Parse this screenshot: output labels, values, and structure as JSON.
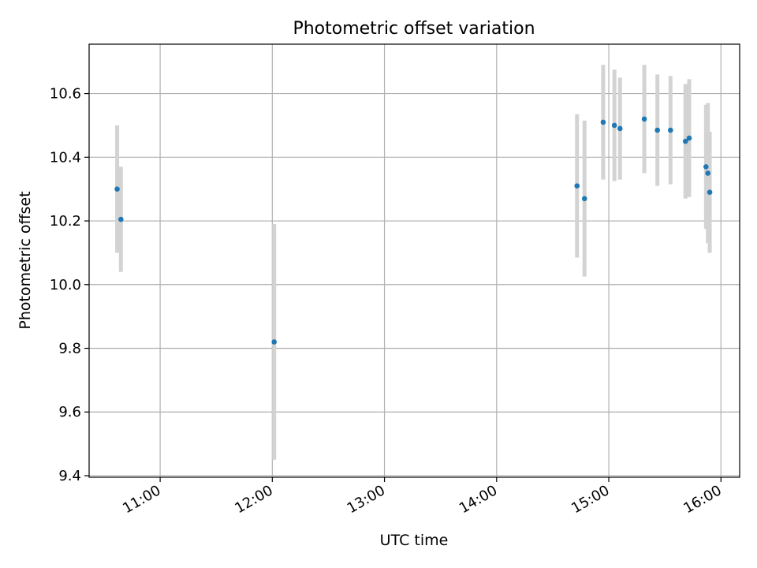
{
  "chart_data": {
    "type": "scatter",
    "title": "Photometric offset variation",
    "xlabel": "UTC time",
    "ylabel": "Photometric offset",
    "x_unit": "UTC time",
    "xlim": [
      "10:22",
      "16:10"
    ],
    "ylim": [
      9.395,
      10.755
    ],
    "x_ticks": [
      "11:00",
      "12:00",
      "13:00",
      "14:00",
      "15:00",
      "16:00"
    ],
    "y_ticks": [
      "9.4",
      "9.6",
      "9.8",
      "10.0",
      "10.2",
      "10.4",
      "10.6"
    ],
    "grid": true,
    "legend": null,
    "point_color": "#1f77b4",
    "errorbar_color": "#d3d3d3",
    "points": [
      {
        "x": "10:37",
        "y": 10.3,
        "yerr": 0.2
      },
      {
        "x": "10:39",
        "y": 10.205,
        "yerr": 0.165
      },
      {
        "x": "12:01",
        "y": 9.82,
        "yerr": 0.37
      },
      {
        "x": "14:43",
        "y": 10.31,
        "yerr": 0.225
      },
      {
        "x": "14:47",
        "y": 10.27,
        "yerr": 0.245
      },
      {
        "x": "14:57",
        "y": 10.51,
        "yerr": 0.18
      },
      {
        "x": "15:03",
        "y": 10.5,
        "yerr": 0.175
      },
      {
        "x": "15:06",
        "y": 10.49,
        "yerr": 0.16
      },
      {
        "x": "15:19",
        "y": 10.52,
        "yerr": 0.17
      },
      {
        "x": "15:26",
        "y": 10.485,
        "yerr": 0.175
      },
      {
        "x": "15:33",
        "y": 10.485,
        "yerr": 0.17
      },
      {
        "x": "15:41",
        "y": 10.45,
        "yerr": 0.18
      },
      {
        "x": "15:43",
        "y": 10.46,
        "yerr": 0.185
      },
      {
        "x": "15:52",
        "y": 10.37,
        "yerr": 0.195
      },
      {
        "x": "15:53",
        "y": 10.35,
        "yerr": 0.22
      },
      {
        "x": "15:54",
        "y": 10.29,
        "yerr": 0.19
      }
    ]
  }
}
